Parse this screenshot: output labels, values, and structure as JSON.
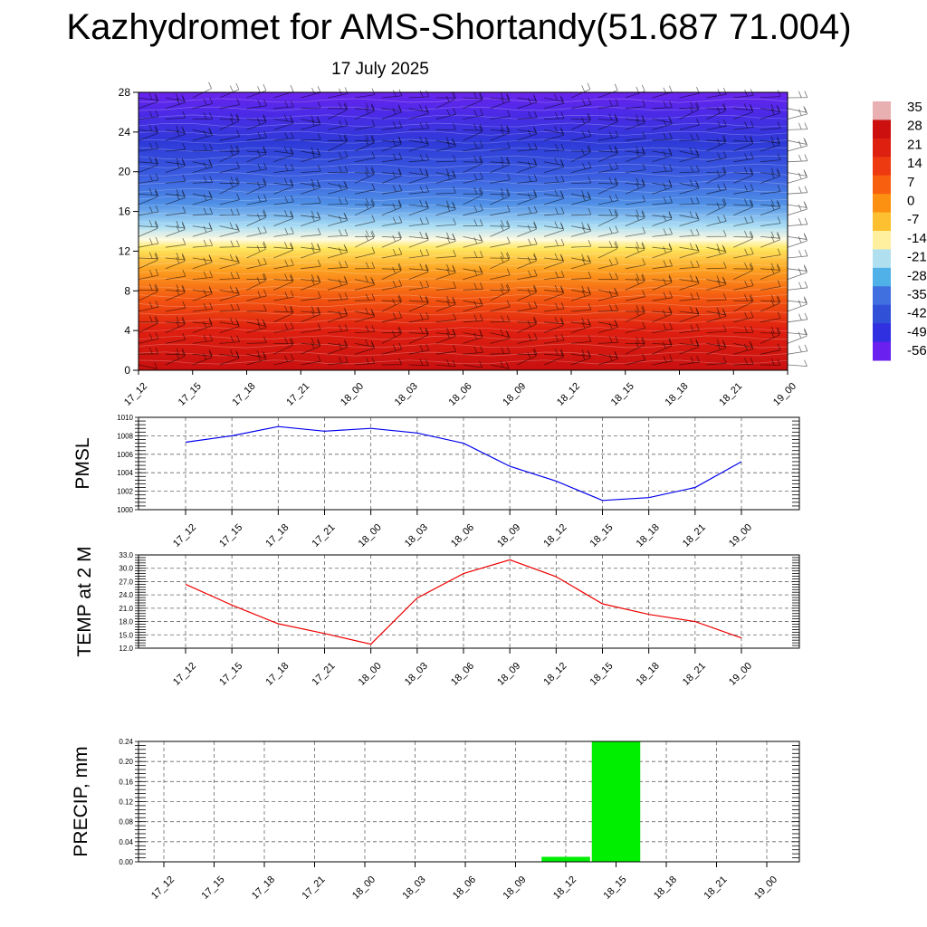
{
  "header": {
    "title": "Kazhydromet for AMS-Shortandy(51.687 71.004)",
    "subtitle": "17 July 2025"
  },
  "chart_data": [
    {
      "type": "heatmap",
      "ylim": [
        0,
        28
      ],
      "y_ticks": [
        "0",
        "4",
        "8",
        "12",
        "16",
        "20",
        "24",
        "28"
      ],
      "x_ticks": [
        "17_12",
        "17_15",
        "17_18",
        "17_21",
        "18_00",
        "18_03",
        "18_06",
        "18_09",
        "18_12",
        "18_15",
        "18_18",
        "18_21",
        "19_00"
      ],
      "colorbar_labels": [
        "35",
        "28",
        "21",
        "14",
        "7",
        "0",
        "-7",
        "-14",
        "-21",
        "-28",
        "-35",
        "-42",
        "-49",
        "-56"
      ],
      "colorbar_colors": [
        "#e8b0b0",
        "#cc1010",
        "#dd2010",
        "#ee3a10",
        "#f86010",
        "#fc9010",
        "#fcc030",
        "#fff0a0",
        "#b0e0f0",
        "#50b0e8",
        "#4070e0",
        "#3050d8",
        "#3030e0",
        "#6a20ee"
      ],
      "grid": false
    },
    {
      "type": "line",
      "ylabel": "PMSL",
      "ylim": [
        1000,
        1010
      ],
      "y_ticks": [
        "1000",
        "1002",
        "1004",
        "1006",
        "1008",
        "1010"
      ],
      "x": [
        "17_12",
        "17_15",
        "17_18",
        "17_21",
        "18_00",
        "18_03",
        "18_06",
        "18_09",
        "18_12",
        "18_15",
        "18_18",
        "18_21",
        "19_00"
      ],
      "series": [
        {
          "values": [
            1007.3,
            1008.0,
            1009.0,
            1008.5,
            1008.8,
            1008.3,
            1007.2,
            1004.7,
            1003.1,
            1001.0,
            1001.3,
            1002.4,
            1005.2
          ],
          "color": "#0000ee"
        }
      ],
      "grid": true
    },
    {
      "type": "line",
      "ylabel": "TEMP at 2 M",
      "ylim": [
        12,
        33
      ],
      "y_ticks": [
        "12.0",
        "15.0",
        "18.0",
        "21.0",
        "24.0",
        "27.0",
        "30.0",
        "33.0"
      ],
      "x": [
        "17_12",
        "17_15",
        "17_18",
        "17_21",
        "18_00",
        "18_03",
        "18_06",
        "18_09",
        "18_12",
        "18_15",
        "18_18",
        "18_21",
        "19_00"
      ],
      "series": [
        {
          "values": [
            26.4,
            21.7,
            17.5,
            15.3,
            12.9,
            23.3,
            28.8,
            31.9,
            28.1,
            22.0,
            19.6,
            18.0,
            14.3
          ],
          "color": "#ee0000"
        }
      ],
      "grid": true
    },
    {
      "type": "bar",
      "ylabel": "PRECIP, mm",
      "ylim": [
        0,
        0.24
      ],
      "y_ticks": [
        "0.00",
        "0.04",
        "0.08",
        "0.12",
        "0.16",
        "0.20",
        "0.24"
      ],
      "categories": [
        "17_12",
        "17_15",
        "17_18",
        "17_21",
        "18_00",
        "18_03",
        "18_06",
        "18_09",
        "18_12",
        "18_15",
        "18_18",
        "18_21",
        "19_00"
      ],
      "values": [
        0,
        0,
        0,
        0,
        0,
        0,
        0,
        0,
        0.01,
        0.24,
        0,
        0,
        0
      ],
      "color": "#00ee00",
      "grid": true
    }
  ]
}
